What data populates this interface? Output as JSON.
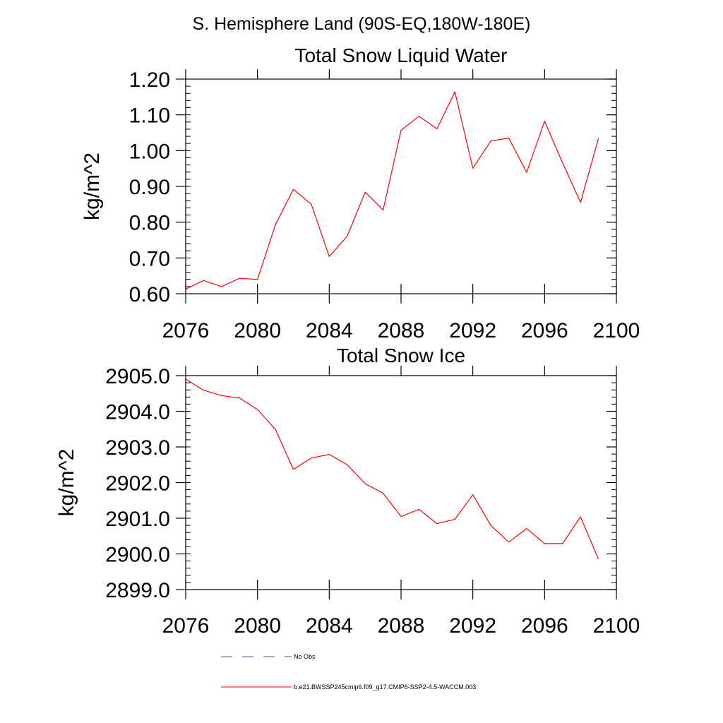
{
  "figure_title": "S. Hemisphere Land (90S-EQ,180W-180E)",
  "colors": {
    "series": "#ff0000",
    "obs": "#4a5aa0",
    "axis": "#000000"
  },
  "legend": [
    {
      "label": "No Obs",
      "style": "dashed",
      "color": "#4a5aa0"
    },
    {
      "label": "b.e21.BWSSP245cmip6.f09_g17.CMIP6-SSP2-4.5-WACCM.003",
      "style": "solid",
      "color": "#ff0000"
    }
  ],
  "chart_data": [
    {
      "type": "line",
      "title": "Total Snow Liquid Water",
      "xlabel": "",
      "ylabel": "kg/m^2",
      "xlim": [
        2076,
        2100
      ],
      "ylim": [
        0.6,
        1.2
      ],
      "xticks": [
        2076,
        2080,
        2084,
        2088,
        2092,
        2096,
        2100
      ],
      "yticks": [
        0.6,
        0.7,
        0.8,
        0.9,
        1.0,
        1.1,
        1.2
      ],
      "ytick_labels": [
        "0.60",
        "0.70",
        "0.80",
        "0.90",
        "1.00",
        "1.10",
        "1.20"
      ],
      "series": [
        {
          "name": "b.e21.BWSSP245cmip6.f09_g17.CMIP6-SSP2-4.5-WACCM.003",
          "x": [
            2076,
            2077,
            2078,
            2079,
            2080,
            2081,
            2082,
            2083,
            2084,
            2085,
            2086,
            2087,
            2088,
            2089,
            2090,
            2091,
            2092,
            2093,
            2094,
            2095,
            2096,
            2097,
            2098,
            2099
          ],
          "values": [
            0.613,
            0.637,
            0.62,
            0.643,
            0.64,
            0.793,
            0.892,
            0.85,
            0.704,
            0.761,
            0.884,
            0.834,
            1.057,
            1.096,
            1.061,
            1.164,
            0.951,
            1.027,
            1.035,
            0.939,
            1.082,
            0.966,
            0.855,
            1.034
          ]
        }
      ]
    },
    {
      "type": "line",
      "title": "Total Snow Ice",
      "xlabel": "",
      "ylabel": "kg/m^2",
      "xlim": [
        2076,
        2100
      ],
      "ylim": [
        2899.0,
        2905.0
      ],
      "xticks": [
        2076,
        2080,
        2084,
        2088,
        2092,
        2096,
        2100
      ],
      "yticks": [
        2899.0,
        2900.0,
        2901.0,
        2902.0,
        2903.0,
        2904.0,
        2905.0
      ],
      "ytick_labels": [
        "2899.0",
        "2900.0",
        "2901.0",
        "2902.0",
        "2903.0",
        "2904.0",
        "2905.0"
      ],
      "series": [
        {
          "name": "b.e21.BWSSP245cmip6.f09_g17.CMIP6-SSP2-4.5-WACCM.003",
          "x": [
            2076,
            2077,
            2078,
            2079,
            2080,
            2081,
            2082,
            2083,
            2084,
            2085,
            2086,
            2087,
            2088,
            2089,
            2090,
            2091,
            2092,
            2093,
            2094,
            2095,
            2096,
            2097,
            2098,
            2099
          ],
          "values": [
            2904.9,
            2904.59,
            2904.44,
            2904.37,
            2904.05,
            2903.49,
            2902.37,
            2902.69,
            2902.79,
            2902.5,
            2901.97,
            2901.7,
            2901.05,
            2901.25,
            2900.85,
            2900.97,
            2901.66,
            2900.8,
            2900.33,
            2900.71,
            2900.29,
            2900.29,
            2901.04,
            2899.85
          ]
        }
      ]
    }
  ]
}
